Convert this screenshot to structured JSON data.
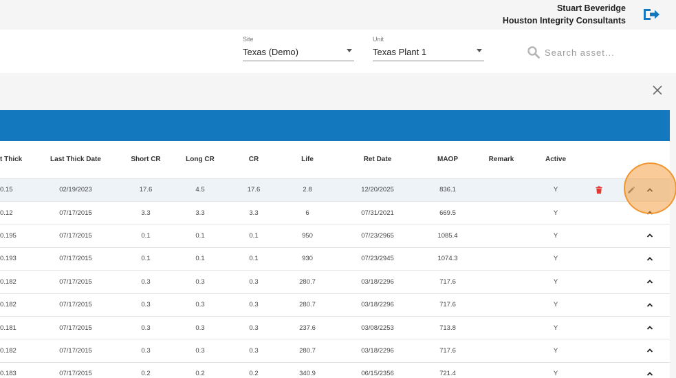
{
  "header": {
    "user_name": "Stuart Beveridge",
    "organization": "Houston Integrity Consultants",
    "logout_icon": "logout-icon"
  },
  "filters": {
    "site": {
      "label": "Site",
      "value": "Texas (Demo)"
    },
    "unit": {
      "label": "Unit",
      "value": "Texas Plant 1"
    },
    "search": {
      "placeholder": "Search asset..."
    }
  },
  "colors": {
    "accent_bar": "#1478be",
    "delete_icon": "#e53935",
    "highlight": "#f0952f"
  },
  "table": {
    "columns": [
      "t Thick",
      "Last Thick Date",
      "Short CR",
      "Long CR",
      "CR",
      "Life",
      "Ret Date",
      "MAOP",
      "Remark",
      "Active"
    ],
    "rows": [
      {
        "last_thick": "0.15",
        "last_thick_date": "02/19/2023",
        "short_cr": "17.6",
        "long_cr": "4.5",
        "cr": "17.6",
        "life": "2.8",
        "ret_date": "12/20/2025",
        "maop": "836.1",
        "remark": "",
        "active": "Y"
      },
      {
        "last_thick": "0.12",
        "last_thick_date": "07/17/2015",
        "short_cr": "3.3",
        "long_cr": "3.3",
        "cr": "3.3",
        "life": "6",
        "ret_date": "07/31/2021",
        "maop": "669.5",
        "remark": "",
        "active": "Y"
      },
      {
        "last_thick": "0.195",
        "last_thick_date": "07/17/2015",
        "short_cr": "0.1",
        "long_cr": "0.1",
        "cr": "0.1",
        "life": "950",
        "ret_date": "07/23/2965",
        "maop": "1085.4",
        "remark": "",
        "active": "Y"
      },
      {
        "last_thick": "0.193",
        "last_thick_date": "07/17/2015",
        "short_cr": "0.1",
        "long_cr": "0.1",
        "cr": "0.1",
        "life": "930",
        "ret_date": "07/23/2945",
        "maop": "1074.3",
        "remark": "",
        "active": "Y"
      },
      {
        "last_thick": "0.182",
        "last_thick_date": "07/17/2015",
        "short_cr": "0.3",
        "long_cr": "0.3",
        "cr": "0.3",
        "life": "280.7",
        "ret_date": "03/18/2296",
        "maop": "717.6",
        "remark": "",
        "active": "Y"
      },
      {
        "last_thick": "0.182",
        "last_thick_date": "07/17/2015",
        "short_cr": "0.3",
        "long_cr": "0.3",
        "cr": "0.3",
        "life": "280.7",
        "ret_date": "03/18/2296",
        "maop": "717.6",
        "remark": "",
        "active": "Y"
      },
      {
        "last_thick": "0.181",
        "last_thick_date": "07/17/2015",
        "short_cr": "0.3",
        "long_cr": "0.3",
        "cr": "0.3",
        "life": "237.6",
        "ret_date": "03/08/2253",
        "maop": "713.8",
        "remark": "",
        "active": "Y"
      },
      {
        "last_thick": "0.182",
        "last_thick_date": "07/17/2015",
        "short_cr": "0.3",
        "long_cr": "0.3",
        "cr": "0.3",
        "life": "280.7",
        "ret_date": "03/18/2296",
        "maop": "717.6",
        "remark": "",
        "active": "Y"
      },
      {
        "last_thick": "0.183",
        "last_thick_date": "07/17/2015",
        "short_cr": "0.2",
        "long_cr": "0.2",
        "cr": "0.2",
        "life": "340.9",
        "ret_date": "06/15/2356",
        "maop": "721.4",
        "remark": "",
        "active": "Y"
      }
    ]
  }
}
